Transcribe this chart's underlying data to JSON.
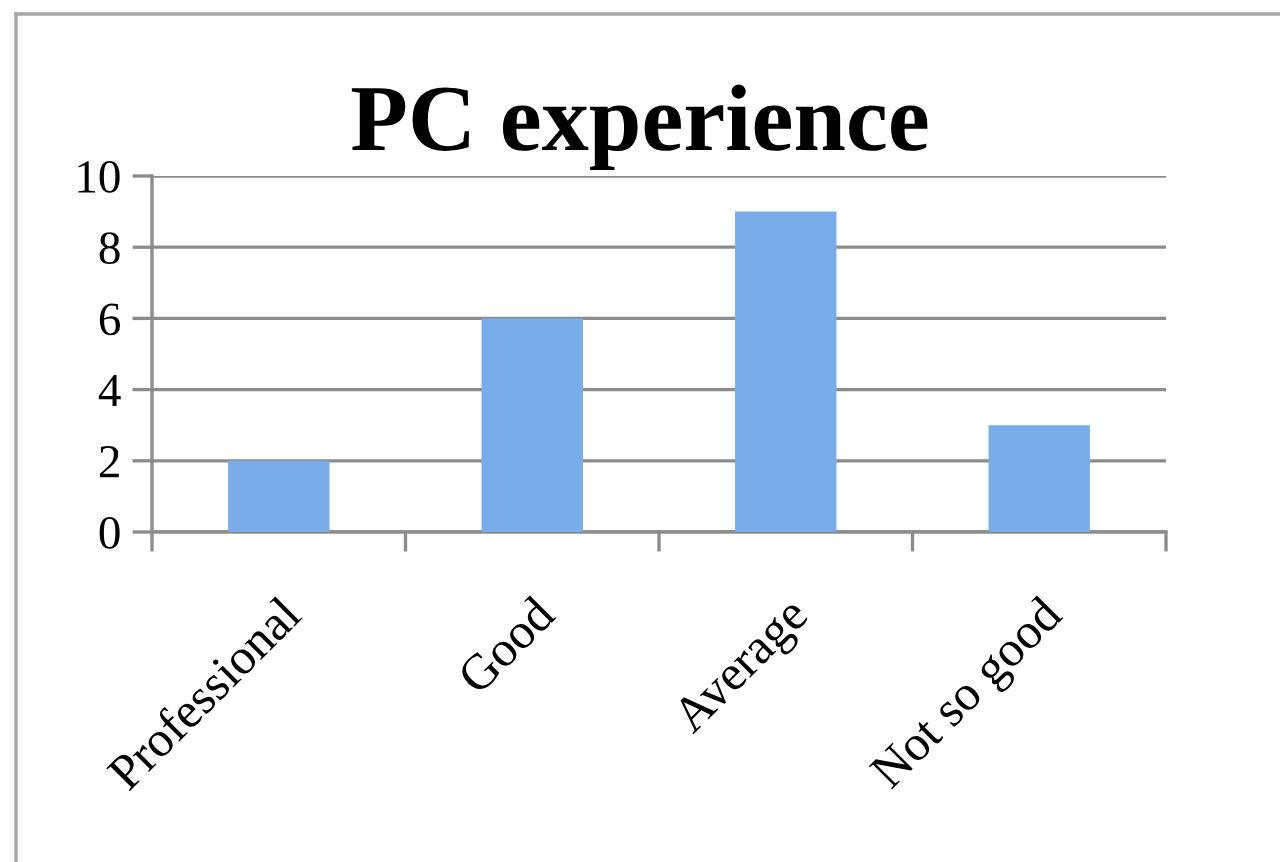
{
  "chart_data": {
    "type": "bar",
    "title": "PC experience",
    "categories": [
      "Professional",
      "Good",
      "Average",
      "Not so good"
    ],
    "values": [
      2,
      6,
      9,
      3
    ],
    "color": "#79ade9",
    "ylim": [
      0,
      10
    ],
    "yticks": [
      0,
      2,
      4,
      6,
      8,
      10
    ],
    "grid": "y"
  }
}
